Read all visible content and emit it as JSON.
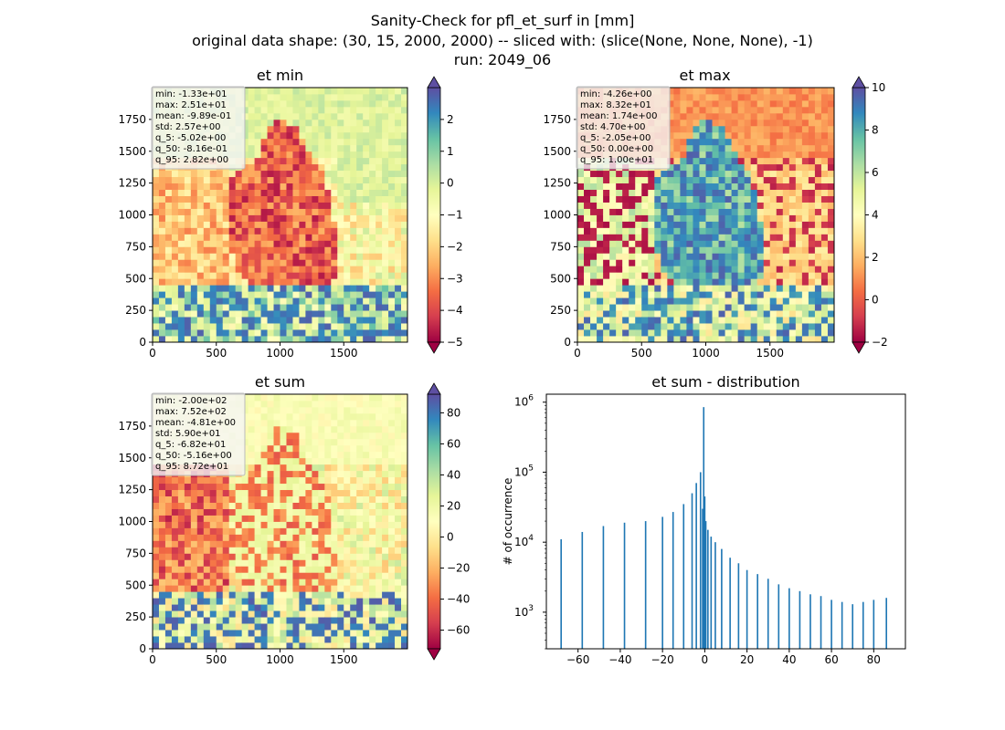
{
  "suptitle": [
    "Sanity-Check for pfl_et_surf in [mm]",
    "original data shape: (30, 15, 2000, 2000) -- sliced with: (slice(None, None, None), -1)",
    "run: 2049_06"
  ],
  "colormap": [
    "#9e0142",
    "#d53e4f",
    "#f46d43",
    "#fdae61",
    "#fee08b",
    "#ffffbf",
    "#e6f598",
    "#abdda4",
    "#66c2a5",
    "#3288bd",
    "#5e4fa2"
  ],
  "chart_data": [
    {
      "type": "heatmap",
      "title": "et min",
      "xlim": [
        0,
        2000
      ],
      "ylim": [
        0,
        2000
      ],
      "xticks": [
        0,
        500,
        1000,
        1500
      ],
      "yticks": [
        0,
        250,
        500,
        750,
        1000,
        1250,
        1500,
        1750
      ],
      "colorbar": {
        "min": -5,
        "max": 3,
        "ticks": [
          -5,
          -4,
          -3,
          -2,
          -1,
          0,
          1,
          2
        ],
        "extend": "both"
      },
      "stats": [
        "min: -1.33e+01",
        "max: 2.51e+01",
        "mean: -9.89e-01",
        "std: 2.57e+00",
        "q_5: -5.02e+00",
        "q_50: -8.16e-01",
        "q_95: 2.82e+00"
      ]
    },
    {
      "type": "heatmap",
      "title": "et max",
      "xlim": [
        0,
        2000
      ],
      "ylim": [
        0,
        2000
      ],
      "xticks": [
        0,
        500,
        1000,
        1500
      ],
      "yticks": [
        0,
        250,
        500,
        750,
        1000,
        1250,
        1500,
        1750
      ],
      "colorbar": {
        "min": -2,
        "max": 10,
        "ticks": [
          -2,
          0,
          2,
          4,
          6,
          8,
          10
        ],
        "extend": "both"
      },
      "stats": [
        "min: -4.26e+00",
        "max: 8.32e+01",
        "mean: 1.74e+00",
        "std: 4.70e+00",
        "q_5: -2.05e+00",
        "q_50: 0.00e+00",
        "q_95: 1.00e+01"
      ]
    },
    {
      "type": "heatmap",
      "title": "et sum",
      "xlim": [
        0,
        2000
      ],
      "ylim": [
        0,
        2000
      ],
      "xticks": [
        0,
        500,
        1000,
        1500
      ],
      "yticks": [
        0,
        250,
        500,
        750,
        1000,
        1250,
        1500,
        1750
      ],
      "colorbar": {
        "min": -72,
        "max": 92,
        "ticks": [
          -60,
          -40,
          -20,
          0,
          20,
          40,
          60,
          80
        ],
        "extend": "both"
      },
      "stats": [
        "min: -2.00e+02",
        "max: 7.52e+02",
        "mean: -4.81e+00",
        "std: 5.90e+01",
        "q_5: -6.82e+01",
        "q_50: -5.16e+00",
        "q_95: 8.72e+01"
      ]
    },
    {
      "type": "bar",
      "title": "et sum - distribution",
      "ylabel": "# of occurrence",
      "xlabel": "",
      "yscale": "log",
      "xlim": [
        -75,
        95
      ],
      "ylim": [
        300,
        1300000
      ],
      "xticks": [
        -60,
        -40,
        -20,
        0,
        20,
        40,
        60,
        80
      ],
      "yticks": [
        1000,
        10000,
        100000,
        1000000
      ],
      "ytick_labels": [
        "10^3",
        "10^4",
        "10^5",
        "10^6"
      ],
      "color": "#1f77b4",
      "bin_width": 0.7,
      "x": [
        -68,
        -58,
        -48,
        -38,
        -28,
        -20,
        -15,
        -10,
        -6,
        -4,
        -2,
        -1,
        -0.5,
        0,
        0.5,
        1.5,
        3,
        5,
        8,
        12,
        16,
        20,
        25,
        30,
        35,
        40,
        45,
        50,
        55,
        60,
        65,
        70,
        75,
        80,
        86
      ],
      "values": [
        11000,
        14000,
        17000,
        19000,
        20000,
        23000,
        27000,
        35000,
        50000,
        70000,
        100000,
        30000,
        850000,
        45000,
        20000,
        15000,
        12000,
        10000,
        8000,
        6000,
        5000,
        4000,
        3500,
        3000,
        2500,
        2200,
        2000,
        1800,
        1700,
        1500,
        1400,
        1300,
        1400,
        1500,
        1600
      ]
    }
  ]
}
